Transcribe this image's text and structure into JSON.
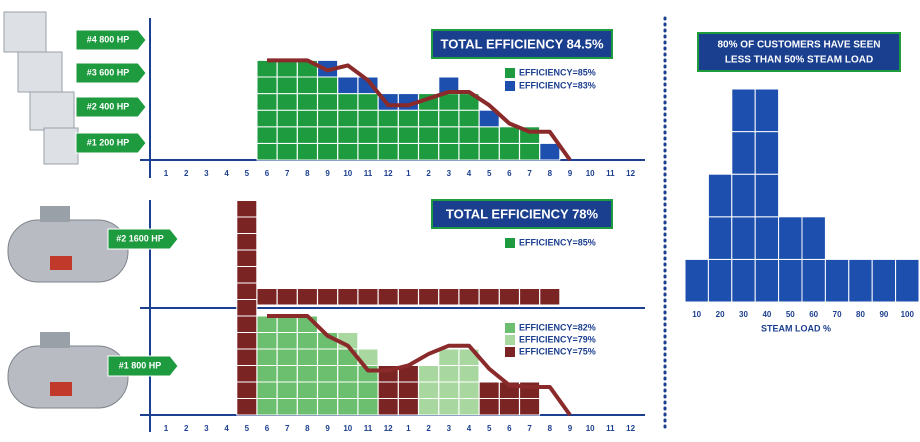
{
  "top_chart": {
    "boilers": [
      "#4 800 HP",
      "#3 600 HP",
      "#2 400 HP",
      "#1 200 HP"
    ],
    "title": "TOTAL EFFICIENCY 84.5%",
    "x_labels": [
      "1",
      "2",
      "3",
      "4",
      "5",
      "6",
      "7",
      "8",
      "9",
      "10",
      "11",
      "12",
      "1",
      "2",
      "3",
      "4",
      "5",
      "6",
      "7",
      "8",
      "9",
      "10",
      "11",
      "12"
    ],
    "series": [
      {
        "name": "EFFICIENCY=85%",
        "color": "#1e9a3f",
        "values": [
          0,
          0,
          0,
          0,
          0,
          6,
          6,
          6,
          5,
          4,
          4,
          3,
          3,
          4,
          4,
          4,
          2,
          2,
          2,
          0,
          0,
          0,
          0,
          0
        ]
      },
      {
        "name": "EFFICIENCY=83%",
        "color": "#1c4fae",
        "values": [
          0,
          0,
          0,
          0,
          0,
          0,
          0,
          0,
          1,
          1,
          1,
          1,
          1,
          0,
          1,
          0,
          1,
          0,
          0,
          1,
          0,
          0,
          0,
          0
        ]
      }
    ],
    "load": {
      "color": "#8b2a2a",
      "values": [
        null,
        null,
        null,
        null,
        null,
        6,
        6,
        6,
        5.4,
        5.7,
        4.8,
        3.3,
        3.3,
        3.7,
        4.1,
        4.1,
        3.3,
        2.2,
        1.7,
        1.7,
        0,
        null,
        null,
        null
      ]
    }
  },
  "bottom_chart": {
    "boilers": [
      "#2 1600 HP",
      "#1 800 HP"
    ],
    "title": "TOTAL EFFICIENCY 78%",
    "upper_legend": {
      "name": "EFFICIENCY=85%",
      "color": "#1e9a3f"
    },
    "x_labels": [
      "1",
      "2",
      "3",
      "4",
      "5",
      "6",
      "7",
      "8",
      "9",
      "10",
      "11",
      "12",
      "1",
      "2",
      "3",
      "4",
      "5",
      "6",
      "7",
      "8",
      "9",
      "10",
      "11",
      "12"
    ],
    "startup": {
      "color": "#7b2424",
      "values": [
        0,
        0,
        0,
        0,
        13,
        0,
        0,
        0,
        0,
        0,
        0,
        0,
        0,
        0,
        0,
        0,
        0,
        0,
        0,
        0,
        0,
        0,
        0,
        0
      ]
    },
    "row": {
      "color": "#7b2424",
      "values": [
        0,
        0,
        0,
        0,
        0,
        1,
        1,
        1,
        1,
        1,
        1,
        1,
        1,
        1,
        1,
        1,
        1,
        1,
        1,
        1,
        0,
        0,
        0,
        0
      ]
    },
    "series": [
      {
        "name": "EFFICIENCY=82%",
        "color": "#6cbf6e",
        "values": [
          0,
          0,
          0,
          0,
          0,
          6,
          6,
          6,
          5,
          4,
          3,
          0,
          0,
          0,
          0,
          0,
          0,
          0,
          0,
          0,
          0,
          0,
          0,
          0
        ]
      },
      {
        "name": "EFFICIENCY=79%",
        "color": "#a8d8a0",
        "values": [
          0,
          0,
          0,
          0,
          0,
          0,
          0,
          0,
          0,
          1,
          1,
          0,
          0,
          3,
          4,
          4,
          0,
          0,
          0,
          0,
          0,
          0,
          0,
          0
        ]
      },
      {
        "name": "EFFICIENCY=75%",
        "color": "#7b2424",
        "values": [
          0,
          0,
          0,
          0,
          0,
          0,
          0,
          0,
          0,
          0,
          0,
          3,
          3,
          0,
          0,
          0,
          2,
          2,
          2,
          0,
          0,
          0,
          0,
          0
        ]
      }
    ],
    "load": {
      "color": "#8b2a2a",
      "values": [
        null,
        null,
        null,
        null,
        null,
        6,
        6,
        6,
        4.8,
        4.2,
        2.7,
        2.7,
        3.0,
        3.7,
        4.2,
        4.2,
        2.8,
        1.8,
        1.7,
        1.7,
        0,
        null,
        null,
        null
      ]
    }
  },
  "histogram": {
    "title": [
      "80% OF CUSTOMERS HAVE SEEN",
      "LESS THAN 50% STEAM LOAD"
    ],
    "color": "#1c4fae",
    "bins": [
      "10",
      "20",
      "30",
      "40",
      "50",
      "60",
      "70",
      "80",
      "90",
      "100"
    ],
    "counts": [
      1,
      3,
      5,
      5,
      2,
      2,
      1,
      1,
      1,
      1
    ],
    "x_label": "STEAM LOAD %"
  }
}
